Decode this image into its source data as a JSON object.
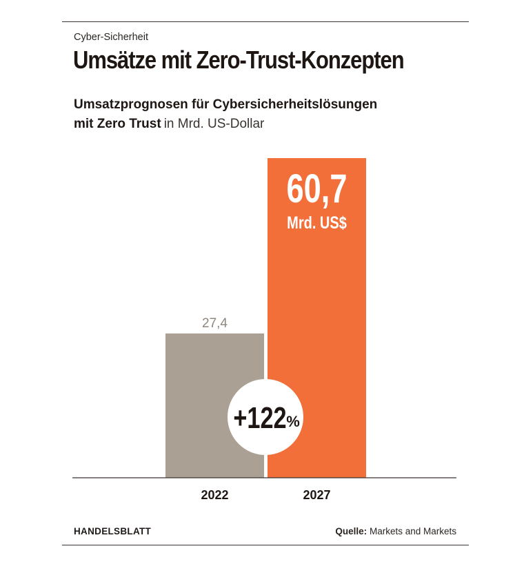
{
  "kicker": "Cyber-Sicherheit",
  "title": "Umsätze mit Zero-Trust-Konzepten",
  "subtitle_line1": "Umsatzprognosen für Cybersicherheitslösungen",
  "subtitle_line2": "mit Zero Trust",
  "subtitle_unit": "in Mrd. US-Dollar",
  "chart_data": {
    "type": "bar",
    "categories": [
      "2022",
      "2027"
    ],
    "values": [
      27.4,
      60.7
    ],
    "value_labels": [
      "27,4",
      "60,7"
    ],
    "highlight_unit": "Mrd. US$",
    "growth_label": "+122",
    "growth_unit": "%",
    "ylim": [
      0,
      60.7
    ],
    "grid": false,
    "colors": [
      "#aaa093",
      "#f26f3a"
    ],
    "label_colors": [
      "#8f877e",
      "#ffffff"
    ],
    "axis_color": "#3a3330",
    "badge_color": "#ffffff",
    "badge_text_color": "#1d1613"
  },
  "footer": {
    "brand": "HANDELSBLATT",
    "source_label": "Quelle:",
    "source": "Markets and Markets"
  }
}
